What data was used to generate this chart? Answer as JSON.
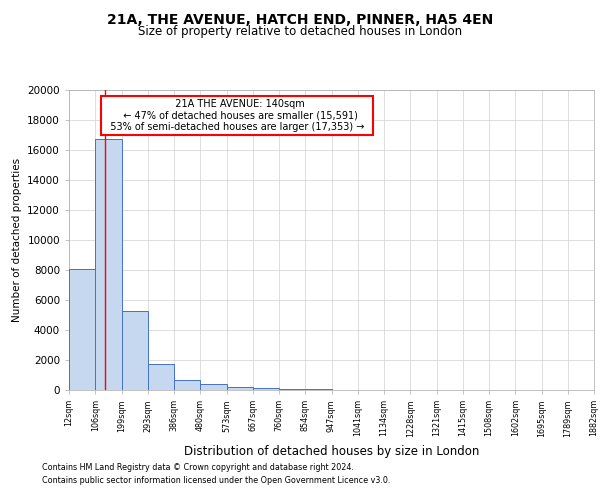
{
  "title_line1": "21A, THE AVENUE, HATCH END, PINNER, HA5 4EN",
  "title_line2": "Size of property relative to detached houses in London",
  "xlabel": "Distribution of detached houses by size in London",
  "ylabel": "Number of detached properties",
  "footnote1": "Contains HM Land Registry data © Crown copyright and database right 2024.",
  "footnote2": "Contains public sector information licensed under the Open Government Licence v3.0.",
  "bin_edges_sqm": [
    12,
    106,
    199,
    293,
    386,
    480,
    573,
    667,
    760,
    854,
    947,
    1041,
    1134,
    1228,
    1321,
    1415,
    1508,
    1602,
    1695,
    1789,
    1882
  ],
  "bar_values": [
    8050,
    16700,
    5300,
    1750,
    650,
    380,
    220,
    130,
    80,
    50,
    30,
    20,
    13,
    8,
    5,
    3,
    2,
    1,
    1,
    1
  ],
  "bar_color": "#c5d8f0",
  "bar_edge_color": "#4472c4",
  "red_line_x": 140,
  "annotation_title": "21A THE AVENUE: 140sqm",
  "annotation_line1": "← 47% of detached houses are smaller (15,591)",
  "annotation_line2": "53% of semi-detached houses are larger (17,353) →",
  "ylim": [
    0,
    20000
  ],
  "yticks": [
    0,
    2000,
    4000,
    6000,
    8000,
    10000,
    12000,
    14000,
    16000,
    18000,
    20000
  ],
  "xtick_labels": [
    "12sqm",
    "106sqm",
    "199sqm",
    "293sqm",
    "386sqm",
    "480sqm",
    "573sqm",
    "667sqm",
    "760sqm",
    "854sqm",
    "947sqm",
    "1041sqm",
    "1134sqm",
    "1228sqm",
    "1321sqm",
    "1415sqm",
    "1508sqm",
    "1602sqm",
    "1695sqm",
    "1789sqm",
    "1882sqm"
  ],
  "background_color": "#ffffff",
  "grid_color": "#d0d0d0"
}
